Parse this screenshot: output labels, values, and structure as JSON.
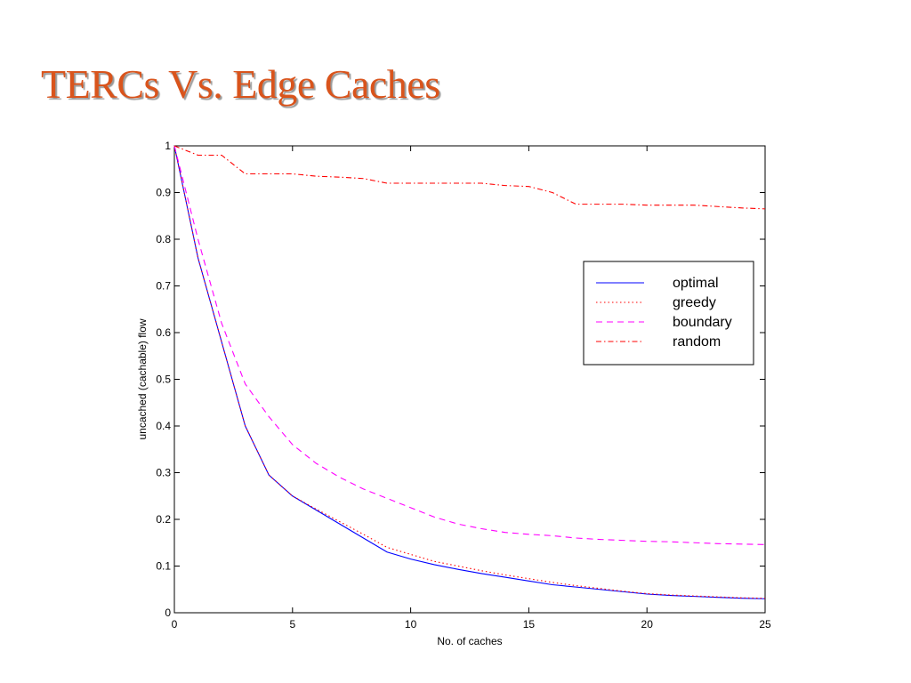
{
  "slide": {
    "title": "TERCs Vs. Edge Caches",
    "title_color": "#d9541c"
  },
  "chart_data": {
    "type": "line",
    "title": "",
    "xlabel": "No. of caches",
    "ylabel": "uncached (cachable) flow",
    "xlim": [
      0,
      25
    ],
    "ylim": [
      0,
      1
    ],
    "xticks": [
      0,
      5,
      10,
      15,
      20,
      25
    ],
    "yticks": [
      0,
      0.1,
      0.2,
      0.3,
      0.4,
      0.5,
      0.6,
      0.7,
      0.8,
      0.9,
      1
    ],
    "grid": false,
    "legend_position": "right",
    "x": [
      0,
      1,
      2,
      3,
      4,
      5,
      6,
      7,
      8,
      9,
      10,
      11,
      12,
      13,
      14,
      15,
      16,
      17,
      18,
      19,
      20,
      21,
      22,
      23,
      24,
      25
    ],
    "series": [
      {
        "name": "optimal",
        "color": "#0000ff",
        "dash": "solid",
        "values": [
          1.0,
          0.76,
          0.58,
          0.4,
          0.295,
          0.25,
          0.22,
          0.19,
          0.16,
          0.13,
          0.115,
          0.103,
          0.093,
          0.084,
          0.076,
          0.068,
          0.06,
          0.055,
          0.05,
          0.045,
          0.04,
          0.037,
          0.035,
          0.033,
          0.031,
          0.03
        ]
      },
      {
        "name": "greedy",
        "color": "#ff0000",
        "dash": "dotted",
        "values": [
          1.0,
          0.76,
          0.58,
          0.4,
          0.295,
          0.25,
          0.222,
          0.195,
          0.168,
          0.14,
          0.125,
          0.11,
          0.1,
          0.09,
          0.081,
          0.073,
          0.065,
          0.058,
          0.052,
          0.046,
          0.041,
          0.038,
          0.036,
          0.034,
          0.032,
          0.031
        ]
      },
      {
        "name": "boundary",
        "color": "#ff00ff",
        "dash": "dashed",
        "values": [
          1.0,
          0.8,
          0.62,
          0.49,
          0.42,
          0.36,
          0.32,
          0.29,
          0.265,
          0.245,
          0.225,
          0.205,
          0.19,
          0.18,
          0.172,
          0.168,
          0.165,
          0.16,
          0.157,
          0.155,
          0.153,
          0.152,
          0.15,
          0.148,
          0.147,
          0.146
        ]
      },
      {
        "name": "random",
        "color": "#ff0000",
        "dash": "dashdot",
        "values": [
          1.0,
          0.98,
          0.98,
          0.94,
          0.94,
          0.94,
          0.935,
          0.933,
          0.93,
          0.92,
          0.92,
          0.92,
          0.92,
          0.92,
          0.915,
          0.913,
          0.9,
          0.875,
          0.875,
          0.875,
          0.873,
          0.873,
          0.873,
          0.87,
          0.867,
          0.865
        ]
      }
    ]
  }
}
